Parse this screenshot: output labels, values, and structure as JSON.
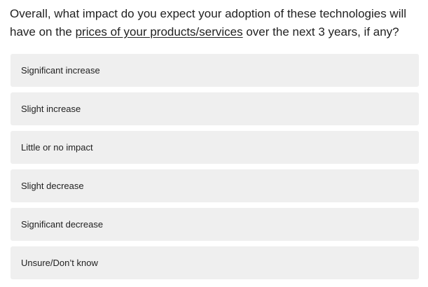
{
  "question": {
    "prefix": "Overall, what impact do you expect your adoption of these technologies will have on the ",
    "emphasis": "prices of your products/services",
    "suffix": " over the next 3 years, if any?"
  },
  "options": [
    {
      "label": "Significant increase"
    },
    {
      "label": "Slight increase"
    },
    {
      "label": "Little or no impact"
    },
    {
      "label": "Slight decrease"
    },
    {
      "label": "Significant decrease"
    },
    {
      "label": "Unsure/Don’t know"
    }
  ]
}
